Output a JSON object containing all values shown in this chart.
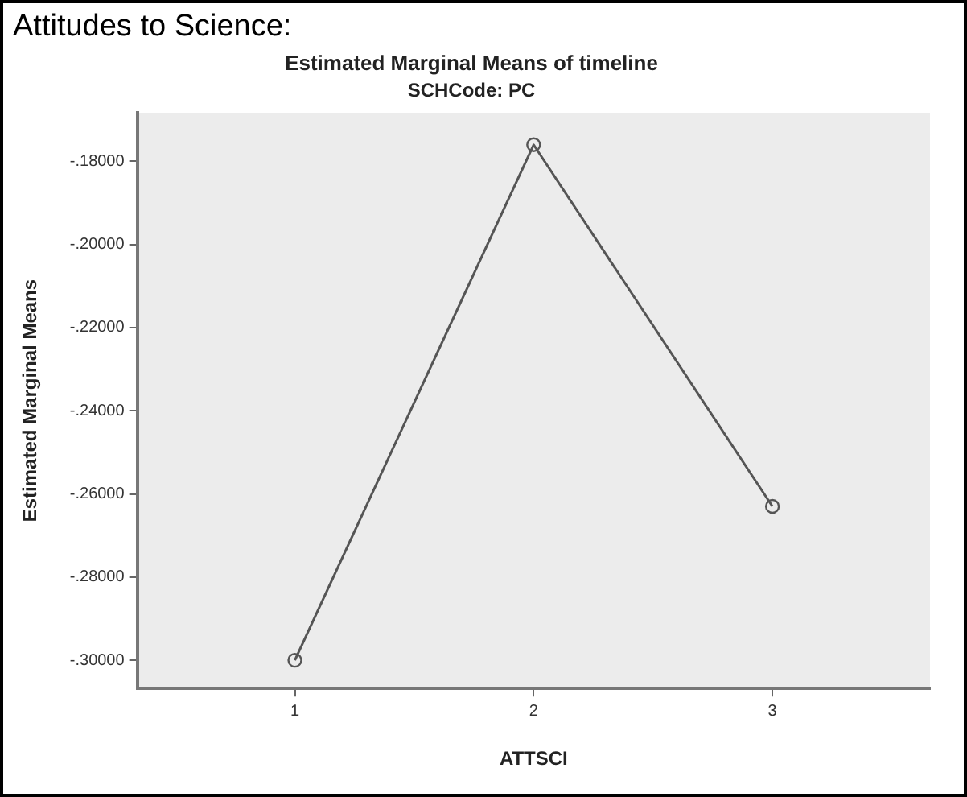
{
  "chart_data": {
    "type": "line",
    "title": "Estimated Marginal Means of timeline",
    "subtitle": "SCHCode: PC",
    "xlabel": "ATTSCI",
    "ylabel": "Estimated Marginal Means",
    "annotations": [
      "Attitudes to Science:"
    ],
    "x": [
      1,
      2,
      3
    ],
    "xlim": [
      0.34,
      3.66
    ],
    "xticks": [
      1,
      2,
      3
    ],
    "ylim": [
      -0.3068,
      -0.1683
    ],
    "yticks": [
      {
        "value": -0.3,
        "label": "-.30000"
      },
      {
        "value": -0.28,
        "label": "-.28000"
      },
      {
        "value": -0.26,
        "label": "-.26000"
      },
      {
        "value": -0.24,
        "label": "-.24000"
      },
      {
        "value": -0.22,
        "label": "-.22000"
      },
      {
        "value": -0.2,
        "label": "-.20000"
      },
      {
        "value": -0.18,
        "label": "-.18000"
      }
    ],
    "series": [
      {
        "color": "#555555",
        "values": [
          -0.3,
          -0.176,
          -0.263
        ]
      }
    ],
    "marker": "circle",
    "line_style": "solid",
    "grid": false,
    "legend": false
  }
}
